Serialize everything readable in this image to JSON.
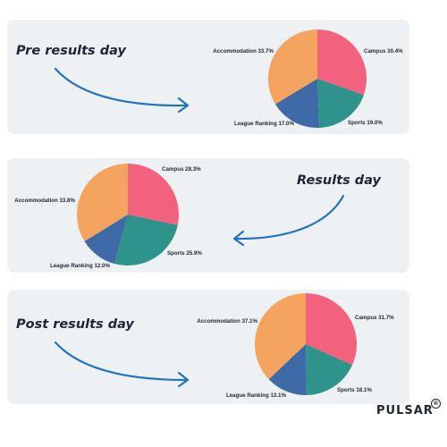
{
  "colors": {
    "campus": "#f2627f",
    "sports": "#2e938a",
    "league": "#3f6aa8",
    "accommodation": "#f4a45e",
    "arrow": "#1f73c4"
  },
  "chart_data": [
    {
      "type": "pie",
      "title": "Pre results day",
      "slices": [
        {
          "label": "Campus",
          "value": 30.4,
          "color_key": "campus"
        },
        {
          "label": "Sports",
          "value": 19.0,
          "color_key": "sports"
        },
        {
          "label": "League Ranking",
          "value": 17.0,
          "color_key": "league"
        },
        {
          "label": "Accommodation",
          "value": 33.7,
          "color_key": "accommodation"
        }
      ]
    },
    {
      "type": "pie",
      "title": "Results day",
      "slices": [
        {
          "label": "Campus",
          "value": 28.3,
          "color_key": "campus"
        },
        {
          "label": "Sports",
          "value": 25.9,
          "color_key": "sports"
        },
        {
          "label": "League Ranking",
          "value": 12.0,
          "color_key": "league"
        },
        {
          "label": "Accommodation",
          "value": 33.8,
          "color_key": "accommodation"
        }
      ]
    },
    {
      "type": "pie",
      "title": "Post results day",
      "slices": [
        {
          "label": "Campus",
          "value": 31.7,
          "color_key": "campus"
        },
        {
          "label": "Sports",
          "value": 18.1,
          "color_key": "sports"
        },
        {
          "label": "League Ranking",
          "value": 13.1,
          "color_key": "league"
        },
        {
          "label": "Accommodation",
          "value": 37.1,
          "color_key": "accommodation"
        }
      ]
    }
  ],
  "brand": {
    "name": "PULSAR",
    "mark": "®"
  }
}
